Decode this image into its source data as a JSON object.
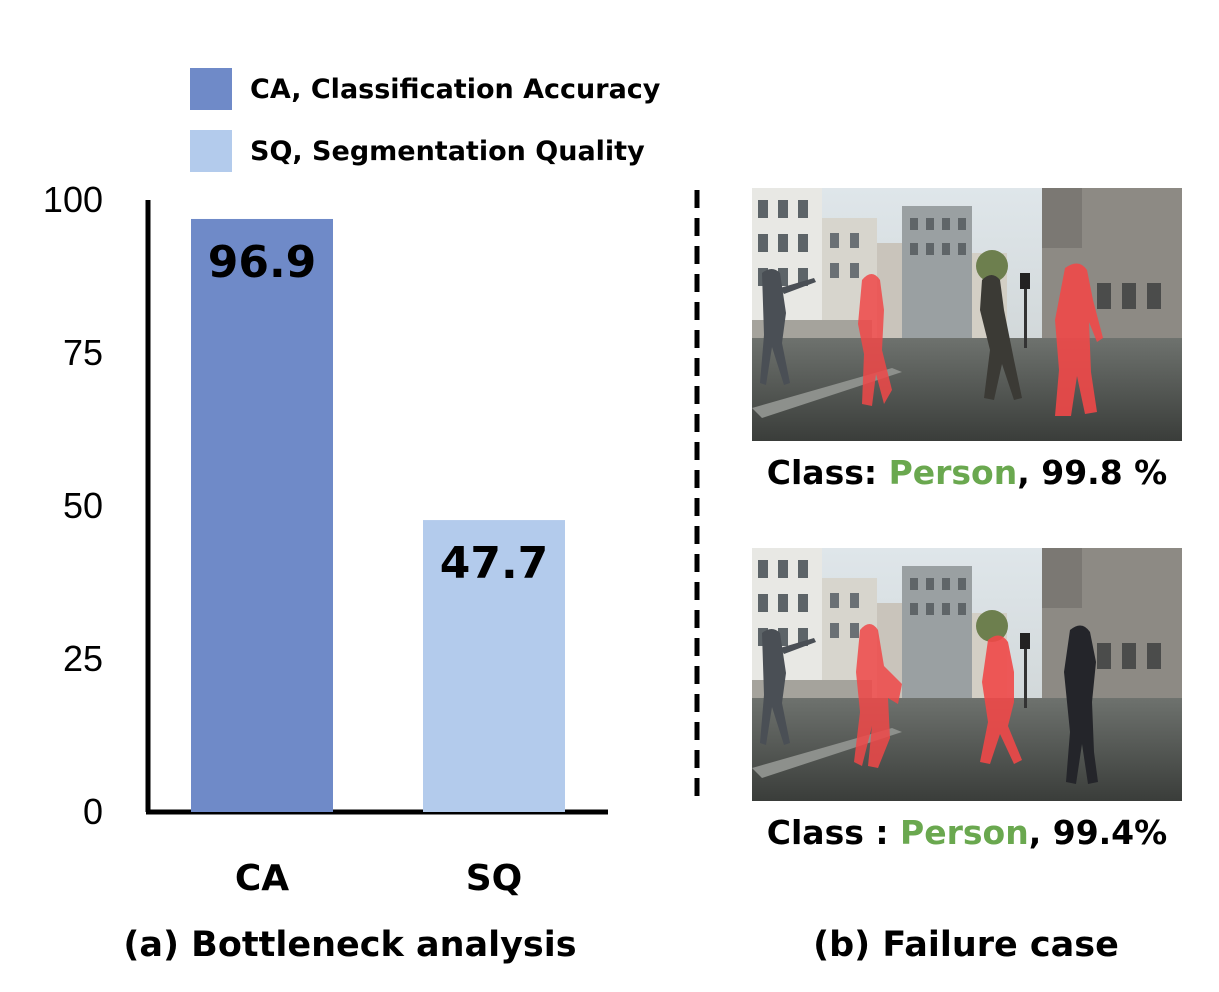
{
  "chart_data": {
    "type": "bar",
    "categories": [
      "CA",
      "SQ"
    ],
    "values": [
      96.9,
      47.7
    ],
    "data_labels": [
      "96.9",
      "47.7"
    ],
    "ylim": [
      0,
      100
    ],
    "yticks": [
      "0",
      "25",
      "50",
      "75",
      "100"
    ],
    "grid": false,
    "legend": [
      {
        "label": "CA, Classification Accuracy",
        "color": "#6f8ac8"
      },
      {
        "label": "SQ, Segmentation Quality",
        "color": "#b3cbec"
      }
    ],
    "legend_position": "top",
    "bar_colors": [
      "#6f8ac8",
      "#b3cbec"
    ],
    "caption": "(a) Bottleneck analysis"
  },
  "failure_case": {
    "caption": "(b) Failure case",
    "examples": [
      {
        "prefix": "Class: ",
        "class_name": "Person",
        "suffix": ", 99.8 %"
      },
      {
        "prefix": "Class : ",
        "class_name": "Person",
        "suffix": ", 99.4%"
      }
    ],
    "class_color": "#6aa84f",
    "mask_color": "#f04848"
  }
}
